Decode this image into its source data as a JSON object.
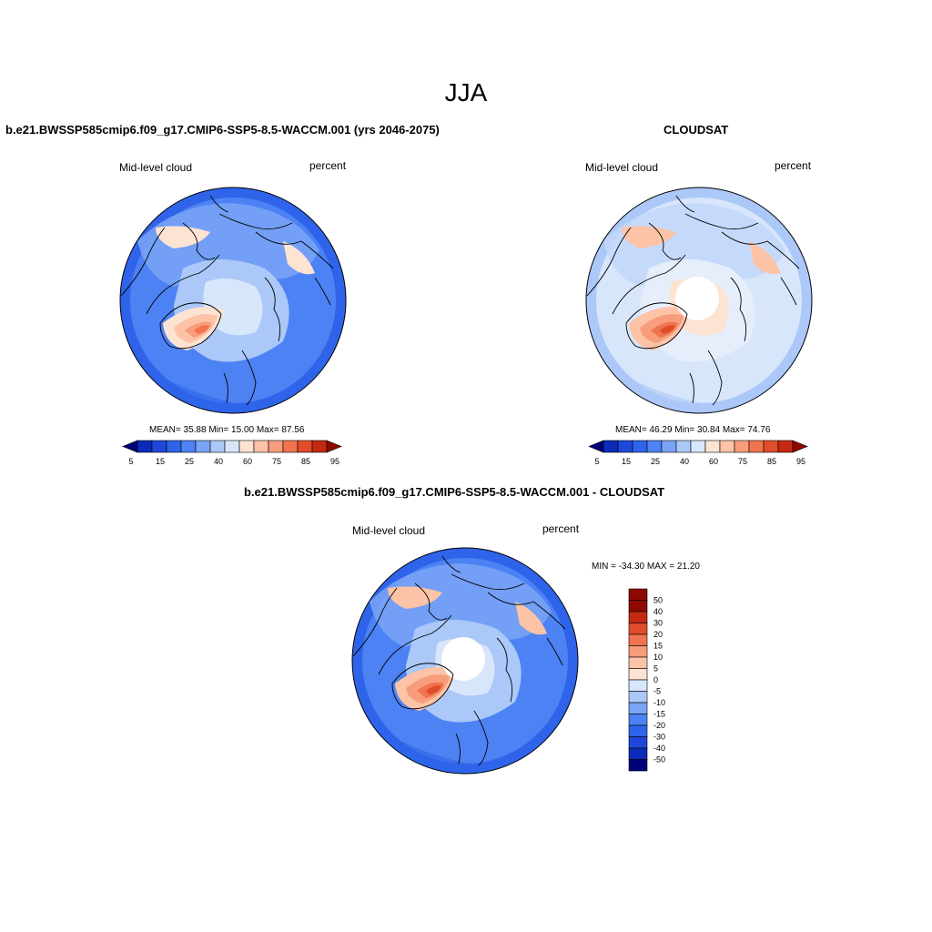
{
  "figure": {
    "season": "JJA"
  },
  "panels": [
    {
      "title": "b.e21.BWSSP585cmip6.f09_g17.CMIP6-SSP5-8.5-WACCM.001 (yrs 2046-2075)",
      "variable": "Mid-level cloud",
      "units": "percent",
      "stats": "MEAN=  35.88  Min=  15.00  Max=  87.56",
      "colorbar": {
        "colors": [
          "#00007a",
          "#0b2bb8",
          "#1f48da",
          "#2f64ea",
          "#4c82f3",
          "#7aa5f6",
          "#abc8f8",
          "#d8e6fb",
          "#fde3d2",
          "#fcc3a7",
          "#f79d7c",
          "#ef744f",
          "#e14d2b",
          "#c42a12",
          "#8e0a00"
        ],
        "tick_labels": [
          "5",
          "15",
          "25",
          "40",
          "60",
          "75",
          "85",
          "95"
        ]
      },
      "palette": {
        "base": "#4c82f3",
        "ring": "#2f64ea",
        "mid": "#7aa5f6",
        "light": "#abc8f8",
        "pale": "#d8e6fb",
        "warm1": "#fde3d2",
        "warm2": "#fcc3a7",
        "warm3": "#f79d7c",
        "warm4": "#ef744f",
        "hot": "#e14d2b"
      }
    },
    {
      "title": "CLOUDSAT",
      "variable": "Mid-level cloud",
      "units": "percent",
      "stats": "MEAN=  46.29  Min=  30.84  Max=  74.76",
      "colorbar": {
        "colors": [
          "#00007a",
          "#0b2bb8",
          "#1f48da",
          "#2f64ea",
          "#4c82f3",
          "#7aa5f6",
          "#abc8f8",
          "#d8e6fb",
          "#fde3d2",
          "#fcc3a7",
          "#f79d7c",
          "#ef744f",
          "#e14d2b",
          "#c42a12",
          "#8e0a00"
        ],
        "tick_labels": [
          "5",
          "15",
          "25",
          "40",
          "60",
          "75",
          "85",
          "95"
        ]
      },
      "palette": {
        "base": "#d8e6fb",
        "ring": "#abc8f8",
        "mid": "#c2d7fa",
        "light": "#e6eefc",
        "pale": "#fde3d2",
        "warm1": "#fcc3a7",
        "warm2": "#f79d7c",
        "warm3": "#ef744f",
        "warm4": "#e14d2b",
        "hot": "#e14d2b"
      }
    },
    {
      "title": "b.e21.BWSSP585cmip6.f09_g17.CMIP6-SSP5-8.5-WACCM.001 - CLOUDSAT",
      "variable": "Mid-level cloud",
      "units": "percent",
      "stats": "MIN = -34.30 MAX =  21.20",
      "colorbar": {
        "colors": [
          "#00007a",
          "#0b2bb8",
          "#1f48da",
          "#2f64ea",
          "#4c82f3",
          "#7aa5f6",
          "#abc8f8",
          "#d8e6fb",
          "#fde3d2",
          "#fcc3a7",
          "#f79d7c",
          "#ef744f",
          "#e14d2b",
          "#c42a12",
          "#8e0a00"
        ],
        "tick_labels": [
          "-50",
          "-40",
          "-30",
          "-20",
          "-15",
          "-10",
          "-5",
          "0",
          "5",
          "10",
          "15",
          "20",
          "30",
          "40",
          "50"
        ]
      },
      "palette": {
        "base": "#4c82f3",
        "ring": "#2f64ea",
        "mid": "#7aa5f6",
        "light": "#abc8f8",
        "pale": "#d8e6fb",
        "warm1": "#fcc3a7",
        "warm2": "#f79d7c",
        "warm3": "#ef744f",
        "warm4": "#e14d2b",
        "hot": "#e14d2b"
      }
    }
  ]
}
